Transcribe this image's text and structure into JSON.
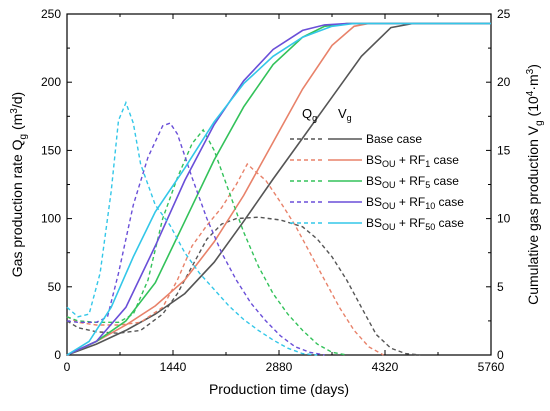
{
  "chart_data": {
    "type": "line",
    "xlabel": "Production time (days)",
    "ylabel_left": {
      "main": "Gas production rate Q",
      "sub": "g",
      "unit_open": " (m",
      "sup": "3",
      "unit_close": "/d)"
    },
    "ylabel_right": {
      "main": "Cumulative gas production V",
      "sub": "g",
      "unit_open": " (10",
      "sup": "4",
      "unit_mid": "·m",
      "sup2": "3",
      "unit_close": ")"
    },
    "x_ticks": [
      0,
      1440,
      2880,
      4320,
      5760
    ],
    "y_left_ticks": [
      0,
      50,
      100,
      150,
      200,
      250
    ],
    "y_right_ticks": [
      0,
      5,
      10,
      15,
      20,
      25
    ],
    "xlim": [
      0,
      5760
    ],
    "ylim_left": [
      0,
      250
    ],
    "ylim_right": [
      0,
      25
    ],
    "legend": {
      "placement": "center-right",
      "header_q": {
        "main": "Q",
        "sub": "g"
      },
      "header_v": {
        "main": "V",
        "sub": "g"
      }
    },
    "series": [
      {
        "label": {
          "main": "Base case",
          "sub": "",
          "suffix": ""
        },
        "color": "#555555",
        "rate": [
          [
            0,
            25
          ],
          [
            150,
            20
          ],
          [
            400,
            17
          ],
          [
            700,
            16
          ],
          [
            1000,
            18
          ],
          [
            1300,
            30
          ],
          [
            1500,
            45
          ],
          [
            1700,
            65
          ],
          [
            1900,
            85
          ],
          [
            2100,
            96
          ],
          [
            2300,
            100
          ],
          [
            2600,
            101
          ],
          [
            2900,
            99
          ],
          [
            3200,
            94
          ],
          [
            3400,
            85
          ],
          [
            3600,
            72
          ],
          [
            3800,
            55
          ],
          [
            4000,
            35
          ],
          [
            4200,
            15
          ],
          [
            4400,
            5
          ],
          [
            4600,
            1
          ],
          [
            4800,
            0
          ]
        ],
        "cumulative": [
          [
            0,
            0
          ],
          [
            400,
            0.8
          ],
          [
            800,
            1.8
          ],
          [
            1200,
            3.0
          ],
          [
            1600,
            4.5
          ],
          [
            2000,
            6.8
          ],
          [
            2400,
            9.8
          ],
          [
            2800,
            12.9
          ],
          [
            3200,
            15.9
          ],
          [
            3600,
            18.9
          ],
          [
            4000,
            21.9
          ],
          [
            4400,
            24.0
          ],
          [
            4700,
            24.3
          ],
          [
            5760,
            24.3
          ]
        ]
      },
      {
        "label": {
          "main": "BS",
          "sub": "OU",
          "suffix": " + RF",
          "sub2": "1",
          "tail": "  case"
        },
        "color": "#e8826a",
        "rate": [
          [
            0,
            28
          ],
          [
            150,
            24
          ],
          [
            400,
            22
          ],
          [
            700,
            22
          ],
          [
            1000,
            24
          ],
          [
            1300,
            35
          ],
          [
            1500,
            55
          ],
          [
            1700,
            80
          ],
          [
            1900,
            95
          ],
          [
            2100,
            108
          ],
          [
            2300,
            125
          ],
          [
            2450,
            140
          ],
          [
            2550,
            135
          ],
          [
            2700,
            128
          ],
          [
            2900,
            112
          ],
          [
            3100,
            95
          ],
          [
            3300,
            75
          ],
          [
            3500,
            55
          ],
          [
            3700,
            35
          ],
          [
            3900,
            18
          ],
          [
            4100,
            6
          ],
          [
            4300,
            0
          ]
        ],
        "cumulative": [
          [
            0,
            0
          ],
          [
            400,
            1.0
          ],
          [
            800,
            2.2
          ],
          [
            1200,
            3.6
          ],
          [
            1600,
            5.5
          ],
          [
            2000,
            8.3
          ],
          [
            2400,
            11.7
          ],
          [
            2800,
            15.6
          ],
          [
            3200,
            19.5
          ],
          [
            3600,
            22.7
          ],
          [
            3900,
            24.1
          ],
          [
            4100,
            24.3
          ],
          [
            5760,
            24.3
          ]
        ]
      },
      {
        "label": {
          "main": "BS",
          "sub": "OU",
          "suffix": " + RF",
          "sub2": "5",
          "tail": "  case"
        },
        "color": "#33c25a",
        "rate": [
          [
            0,
            28
          ],
          [
            150,
            25
          ],
          [
            400,
            24
          ],
          [
            700,
            24
          ],
          [
            900,
            30
          ],
          [
            1100,
            55
          ],
          [
            1300,
            100
          ],
          [
            1500,
            130
          ],
          [
            1700,
            155
          ],
          [
            1850,
            165
          ],
          [
            2000,
            150
          ],
          [
            2200,
            120
          ],
          [
            2400,
            90
          ],
          [
            2600,
            65
          ],
          [
            2800,
            45
          ],
          [
            3000,
            30
          ],
          [
            3200,
            18
          ],
          [
            3400,
            8
          ],
          [
            3600,
            2
          ],
          [
            3800,
            0
          ]
        ],
        "cumulative": [
          [
            0,
            0
          ],
          [
            400,
            1.0
          ],
          [
            800,
            2.5
          ],
          [
            1200,
            5.3
          ],
          [
            1600,
            9.8
          ],
          [
            2000,
            14.3
          ],
          [
            2400,
            18.2
          ],
          [
            2800,
            21.3
          ],
          [
            3200,
            23.3
          ],
          [
            3500,
            24.1
          ],
          [
            3800,
            24.3
          ],
          [
            5760,
            24.3
          ]
        ]
      },
      {
        "label": {
          "main": "BS",
          "sub": "OU",
          "suffix": " + RF",
          "sub2": "10",
          "tail": " case"
        },
        "color": "#6a4fd8",
        "rate": [
          [
            0,
            25
          ],
          [
            150,
            24
          ],
          [
            400,
            24
          ],
          [
            550,
            28
          ],
          [
            700,
            60
          ],
          [
            900,
            110
          ],
          [
            1100,
            145
          ],
          [
            1300,
            168
          ],
          [
            1400,
            170
          ],
          [
            1500,
            162
          ],
          [
            1700,
            130
          ],
          [
            1900,
            100
          ],
          [
            2100,
            75
          ],
          [
            2300,
            55
          ],
          [
            2500,
            38
          ],
          [
            2700,
            25
          ],
          [
            2900,
            14
          ],
          [
            3100,
            6
          ],
          [
            3300,
            2
          ],
          [
            3500,
            0
          ]
        ],
        "cumulative": [
          [
            0,
            0
          ],
          [
            400,
            1.0
          ],
          [
            800,
            3.5
          ],
          [
            1200,
            8.0
          ],
          [
            1600,
            12.8
          ],
          [
            2000,
            16.9
          ],
          [
            2400,
            20.1
          ],
          [
            2800,
            22.4
          ],
          [
            3200,
            23.8
          ],
          [
            3500,
            24.2
          ],
          [
            3800,
            24.3
          ],
          [
            5760,
            24.3
          ]
        ]
      },
      {
        "label": {
          "main": "BS",
          "sub": "OU",
          "suffix": " + RF",
          "sub2": "50",
          "tail": " case"
        },
        "color": "#33c7e8",
        "rate": [
          [
            0,
            35
          ],
          [
            150,
            28
          ],
          [
            300,
            30
          ],
          [
            450,
            60
          ],
          [
            600,
            120
          ],
          [
            700,
            172
          ],
          [
            800,
            185
          ],
          [
            900,
            170
          ],
          [
            1000,
            140
          ],
          [
            1200,
            110
          ],
          [
            1400,
            95
          ],
          [
            1600,
            75
          ],
          [
            1800,
            60
          ],
          [
            2000,
            48
          ],
          [
            2200,
            36
          ],
          [
            2400,
            26
          ],
          [
            2600,
            18
          ],
          [
            2800,
            11
          ],
          [
            3000,
            5
          ],
          [
            3200,
            1
          ],
          [
            3400,
            0
          ]
        ],
        "cumulative": [
          [
            0,
            0
          ],
          [
            300,
            1.0
          ],
          [
            600,
            3.5
          ],
          [
            900,
            7.2
          ],
          [
            1200,
            10.5
          ],
          [
            1600,
            13.7
          ],
          [
            2000,
            17.1
          ],
          [
            2400,
            19.9
          ],
          [
            2800,
            21.9
          ],
          [
            3200,
            23.3
          ],
          [
            3600,
            24.1
          ],
          [
            3900,
            24.3
          ],
          [
            5760,
            24.3
          ]
        ]
      }
    ]
  }
}
